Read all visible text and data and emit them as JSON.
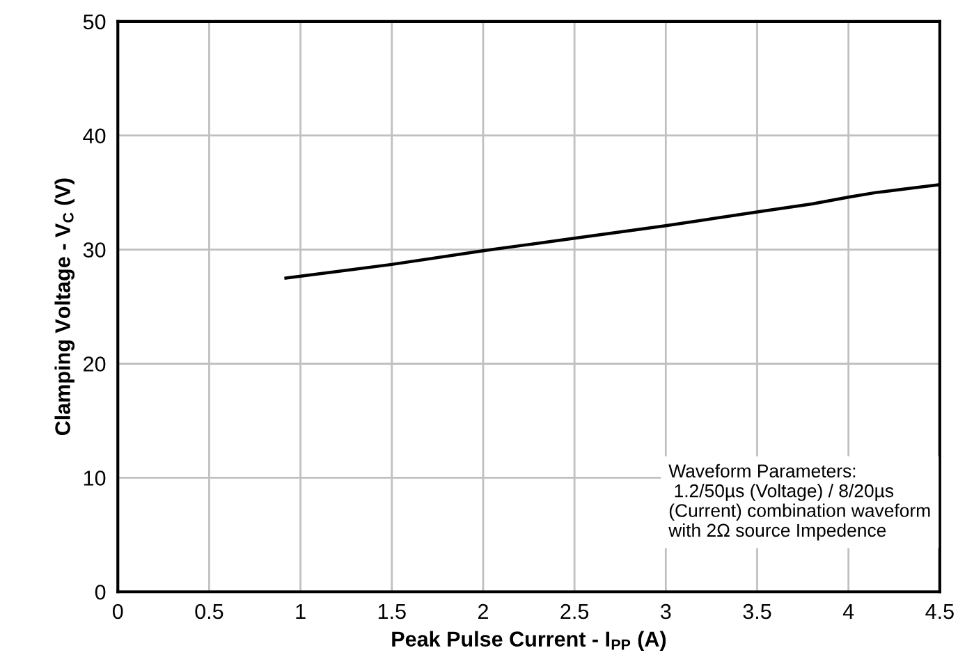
{
  "chart_data": {
    "type": "line",
    "xlabel": "Peak Pulse Current - I$_{PP}$ (A)",
    "ylabel": "Clamping Voltage - V$_{C}$ (V)",
    "x": [
      0.92,
      1.5,
      2.0,
      2.5,
      3.0,
      3.5,
      3.8,
      4.0,
      4.15,
      4.3,
      4.5
    ],
    "series": [
      {
        "color": "#000000",
        "values": [
          27.5,
          28.7,
          29.9,
          31.0,
          32.1,
          33.3,
          34.0,
          34.6,
          35.0,
          35.3,
          35.7
        ]
      }
    ],
    "xlim": [
      0,
      4.5
    ],
    "xticks": [
      0,
      0.5,
      1,
      1.5,
      2,
      2.5,
      3,
      3.5,
      4,
      4.5
    ],
    "ylim": [
      0,
      50
    ],
    "yticks": [
      0,
      10,
      20,
      30,
      40,
      50
    ],
    "grid": true,
    "marker": "none",
    "line_style": "solid",
    "annotations": [
      "Waveform Parameters:\n 1.2/50µs (Voltage) / 8/20µs\n(Current) combination waveform\nwith 2Ω source Impedence"
    ]
  }
}
